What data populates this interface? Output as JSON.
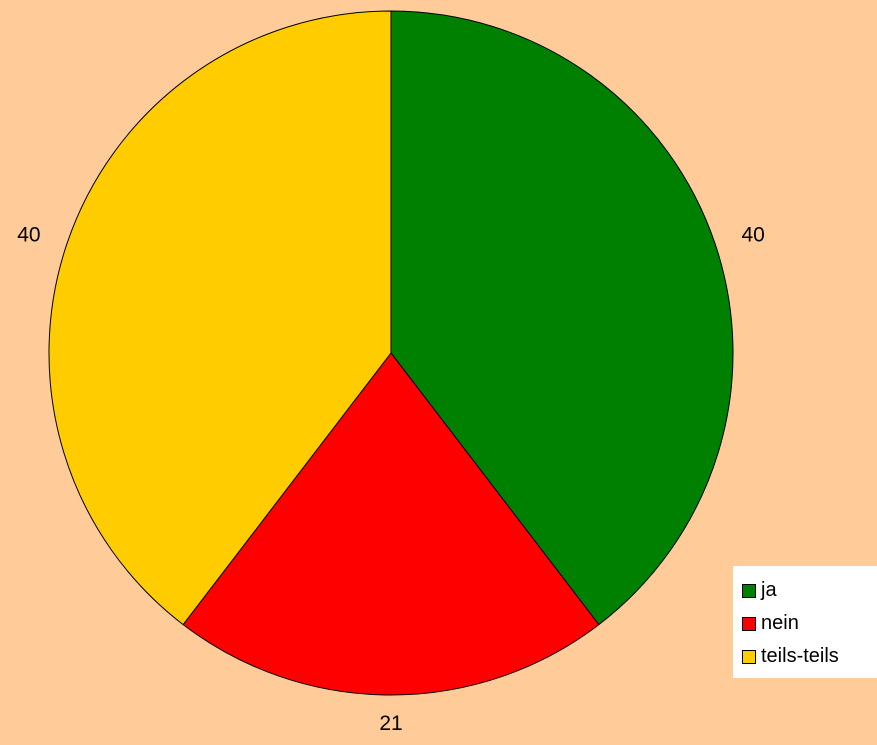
{
  "chart_data": {
    "type": "pie",
    "categories": [
      "ja",
      "nein",
      "teils-teils"
    ],
    "values": [
      40,
      21,
      40
    ],
    "colors": [
      "#008000",
      "#ff0000",
      "#ffcc00"
    ],
    "start": "top",
    "direction": "clockwise",
    "legend_position": "bottom-right",
    "data_labels": [
      "40",
      "21",
      "40"
    ]
  }
}
